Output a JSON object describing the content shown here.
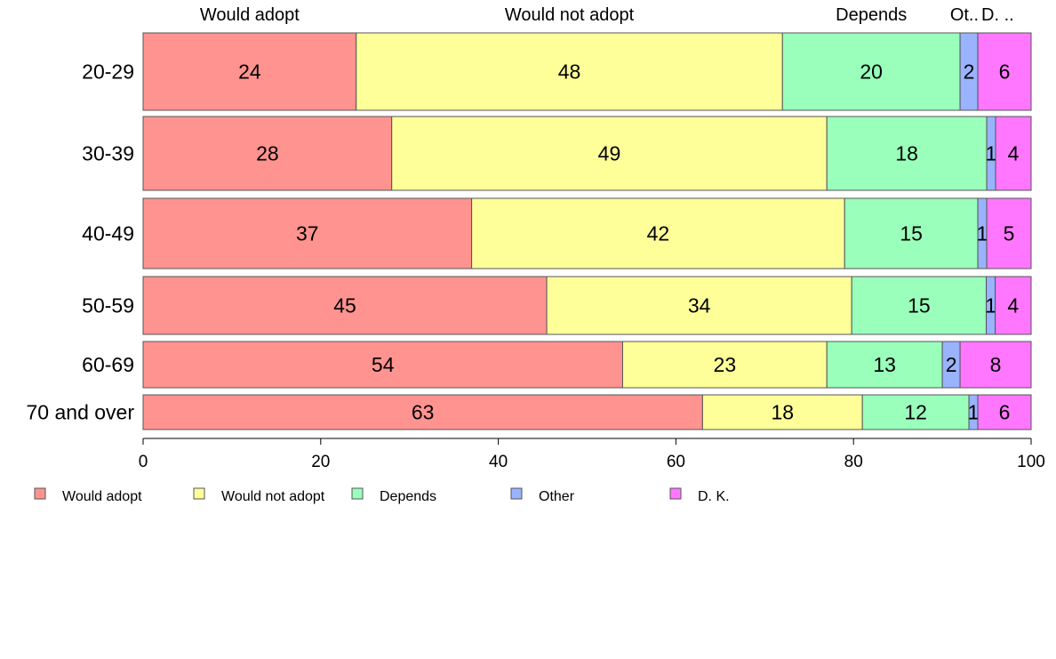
{
  "chart_data": {
    "type": "bar",
    "orientation": "horizontal",
    "stacked": true,
    "categories": [
      "20-29",
      "30-39",
      "40-49",
      "50-59",
      "60-69",
      "70 and over"
    ],
    "series": [
      {
        "name": "Would adopt",
        "color": "#ff9390",
        "values": [
          24,
          28,
          37,
          45,
          54,
          63
        ]
      },
      {
        "name": "Would not adopt",
        "color": "#ffff99",
        "values": [
          48,
          49,
          42,
          34,
          23,
          18
        ]
      },
      {
        "name": "Depends",
        "color": "#99ffbb",
        "values": [
          20,
          18,
          15,
          15,
          13,
          12
        ]
      },
      {
        "name": "Other",
        "color": "#99b3ff",
        "values": [
          2,
          1,
          1,
          1,
          2,
          1
        ]
      },
      {
        "name": "D. K.",
        "color": "#ff77ff",
        "values": [
          6,
          4,
          5,
          4,
          8,
          6
        ]
      }
    ],
    "top_labels": [
      "Would adopt",
      "Would not adopt",
      "Depends",
      "Ot..",
      "D. .."
    ],
    "xlim": [
      0,
      100
    ],
    "xticks": [
      "0",
      "20",
      "40",
      "60",
      "80",
      "100"
    ],
    "grid": false,
    "legend_position": "bottom-left"
  }
}
